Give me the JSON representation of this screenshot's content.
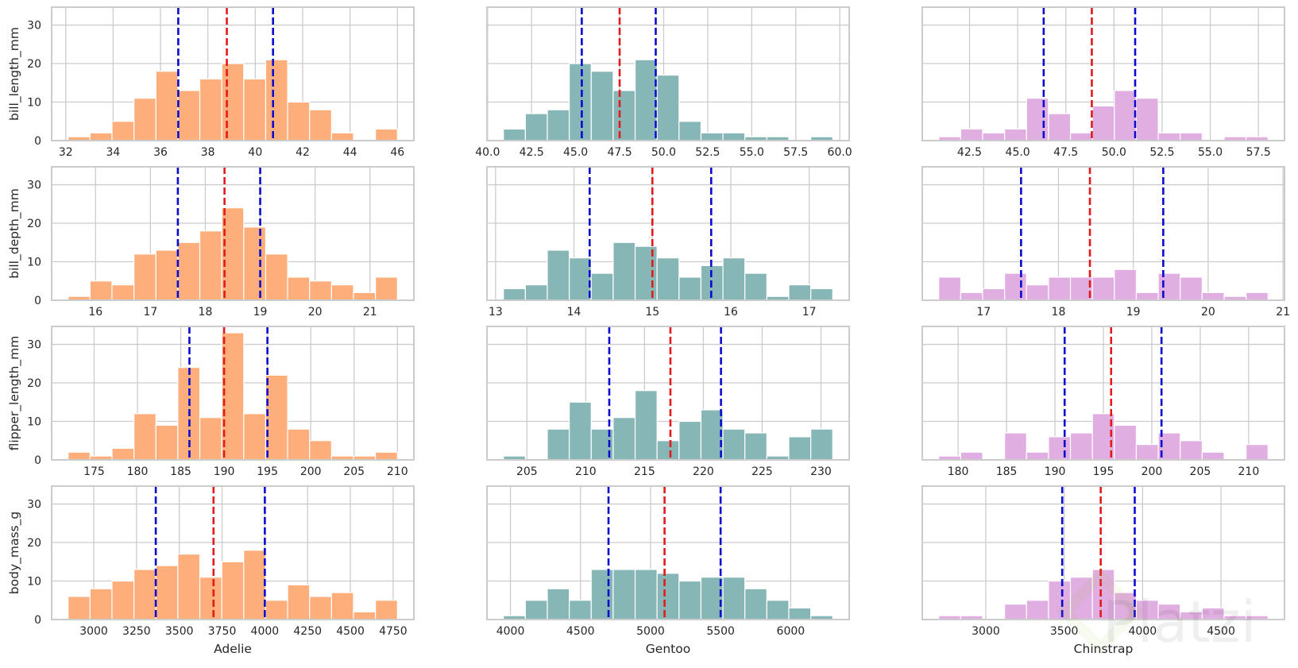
{
  "chart_data": {
    "type": "histogram-grid",
    "title": "",
    "species": [
      "Adelie",
      "Gentoo",
      "Chinstrap"
    ],
    "variables": [
      "bill_length_mm",
      "bill_depth_mm",
      "flipper_length_mm",
      "body_mass_g"
    ],
    "colors": {
      "Adelie": "#fdae7b",
      "Gentoo": "#87b6b7",
      "Chinstrap": "#e0aee0",
      "center_line": "#e3191c",
      "spread_lines": "#0b0bd0",
      "grid": "#cccccc",
      "spine": "#cccccc"
    },
    "ylim": [
      0,
      34.65
    ],
    "yticks": [
      0,
      10,
      20,
      30
    ],
    "grid": true,
    "legend": "none",
    "watermark": "Platzi",
    "panels": [
      {
        "row": 0,
        "col": 0,
        "species": "Adelie",
        "variable": "bill_length_mm",
        "bin_range": [
          32.1,
          46.0
        ],
        "counts": [
          1,
          2,
          5,
          11,
          18,
          13,
          16,
          20,
          16,
          21,
          10,
          8,
          2,
          0,
          3
        ],
        "xticks": [
          32,
          34,
          36,
          38,
          40,
          42,
          44,
          46
        ],
        "xtick_labels": [
          "32",
          "34",
          "36",
          "38",
          "40",
          "42",
          "44",
          "46"
        ],
        "center": 38.8,
        "lower": 36.75,
        "upper": 40.75
      },
      {
        "row": 0,
        "col": 1,
        "species": "Gentoo",
        "variable": "bill_length_mm",
        "bin_range": [
          40.9,
          59.6
        ],
        "counts": [
          3,
          7,
          8,
          20,
          18,
          13,
          21,
          17,
          5,
          2,
          2,
          1,
          1,
          0,
          1
        ],
        "xticks": [
          40,
          42.5,
          45,
          47.5,
          50,
          52.5,
          55,
          57.5,
          60
        ],
        "xtick_labels": [
          "40.0",
          "42.5",
          "45.0",
          "47.5",
          "50.0",
          "52.5",
          "55.0",
          "57.5",
          "60.0"
        ],
        "center": 47.5,
        "lower": 45.35,
        "upper": 49.55
      },
      {
        "row": 0,
        "col": 2,
        "species": "Chinstrap",
        "variable": "bill_length_mm",
        "bin_range": [
          40.9,
          58.0
        ],
        "counts": [
          1,
          3,
          2,
          3,
          11,
          7,
          2,
          9,
          13,
          11,
          2,
          2,
          0,
          1,
          1
        ],
        "xticks": [
          42.5,
          45,
          47.5,
          50,
          52.5,
          55,
          57.5
        ],
        "xtick_labels": [
          "42.5",
          "45.0",
          "47.5",
          "50.0",
          "52.5",
          "55.0",
          "57.5"
        ],
        "center": 48.85,
        "lower": 46.35,
        "upper": 51.1
      },
      {
        "row": 1,
        "col": 0,
        "species": "Adelie",
        "variable": "bill_depth_mm",
        "bin_range": [
          15.5,
          21.5
        ],
        "counts": [
          1,
          5,
          4,
          12,
          13,
          15,
          18,
          24,
          19,
          12,
          6,
          5,
          4,
          2,
          6
        ],
        "xticks": [
          16,
          17,
          18,
          19,
          20,
          21
        ],
        "xtick_labels": [
          "16",
          "17",
          "18",
          "19",
          "20",
          "21"
        ],
        "center": 18.35,
        "lower": 17.5,
        "upper": 19.0
      },
      {
        "row": 1,
        "col": 1,
        "species": "Gentoo",
        "variable": "bill_depth_mm",
        "bin_range": [
          13.1,
          17.3
        ],
        "counts": [
          3,
          4,
          13,
          11,
          7,
          15,
          14,
          11,
          6,
          9,
          11,
          7,
          1,
          4,
          3
        ],
        "xticks": [
          13,
          14,
          15,
          16,
          17
        ],
        "xtick_labels": [
          "13",
          "14",
          "15",
          "16",
          "17"
        ],
        "center": 15.0,
        "lower": 14.2,
        "upper": 15.75
      },
      {
        "row": 1,
        "col": 2,
        "species": "Chinstrap",
        "variable": "bill_depth_mm",
        "bin_range": [
          16.4,
          20.8
        ],
        "counts": [
          6,
          2,
          3,
          7,
          4,
          6,
          6,
          6,
          8,
          2,
          7,
          6,
          2,
          1,
          2
        ],
        "xticks": [
          17,
          18,
          19,
          20,
          21
        ],
        "xtick_labels": [
          "17",
          "18",
          "19",
          "20",
          "21"
        ],
        "center": 18.42,
        "lower": 17.5,
        "upper": 19.4
      },
      {
        "row": 2,
        "col": 0,
        "species": "Adelie",
        "variable": "flipper_length_mm",
        "bin_range": [
          172,
          210
        ],
        "counts": [
          2,
          1,
          3,
          12,
          9,
          24,
          11,
          33,
          12,
          22,
          8,
          5,
          1,
          1,
          2
        ],
        "xticks": [
          175,
          180,
          185,
          190,
          195,
          200,
          205,
          210
        ],
        "xtick_labels": [
          "175",
          "180",
          "185",
          "190",
          "195",
          "200",
          "205",
          "210"
        ],
        "center": 190,
        "lower": 186,
        "upper": 195
      },
      {
        "row": 2,
        "col": 1,
        "species": "Gentoo",
        "variable": "flipper_length_mm",
        "bin_range": [
          203,
          231
        ],
        "counts": [
          1,
          0,
          8,
          15,
          8,
          11,
          18,
          5,
          10,
          13,
          8,
          7,
          1,
          6,
          8
        ],
        "xticks": [
          205,
          210,
          215,
          220,
          225,
          230
        ],
        "xtick_labels": [
          "205",
          "210",
          "215",
          "220",
          "225",
          "230"
        ],
        "center": 217.2,
        "lower": 212,
        "upper": 221.5
      },
      {
        "row": 2,
        "col": 2,
        "species": "Chinstrap",
        "variable": "flipper_length_mm",
        "bin_range": [
          178,
          212
        ],
        "counts": [
          1,
          2,
          0,
          7,
          2,
          6,
          7,
          12,
          9,
          4,
          7,
          5,
          2,
          0,
          4
        ],
        "xticks": [
          180,
          185,
          190,
          195,
          200,
          205,
          210
        ],
        "xtick_labels": [
          "180",
          "185",
          "190",
          "195",
          "200",
          "205",
          "210"
        ],
        "center": 195.8,
        "lower": 191,
        "upper": 201
      },
      {
        "row": 3,
        "col": 0,
        "species": "Adelie",
        "variable": "body_mass_g",
        "bin_range": [
          2850,
          4775
        ],
        "counts": [
          6,
          8,
          10,
          13,
          14,
          17,
          11,
          15,
          18,
          5,
          9,
          6,
          7,
          2,
          5
        ],
        "xticks": [
          3000,
          3250,
          3500,
          3750,
          4000,
          4250,
          4500,
          4750
        ],
        "xtick_labels": [
          "3000",
          "3250",
          "3500",
          "3750",
          "4000",
          "4250",
          "4500",
          "4750"
        ],
        "center": 3700,
        "lower": 3362.5,
        "upper": 4000
      },
      {
        "row": 3,
        "col": 1,
        "species": "Gentoo",
        "variable": "body_mass_g",
        "bin_range": [
          3950,
          6300
        ],
        "counts": [
          1,
          5,
          8,
          5,
          13,
          13,
          13,
          12,
          10,
          11,
          11,
          8,
          5,
          3,
          1
        ],
        "xticks": [
          4000,
          4500,
          5000,
          5500,
          6000
        ],
        "xtick_labels": [
          "4000",
          "4500",
          "5000",
          "5500",
          "6000"
        ],
        "center": 5100,
        "lower": 4700,
        "upper": 5500
      },
      {
        "row": 3,
        "col": 2,
        "species": "Chinstrap",
        "variable": "body_mass_g",
        "bin_range": [
          2700,
          4800
        ],
        "counts": [
          1,
          1,
          0,
          4,
          5,
          10,
          11,
          13,
          7,
          5,
          4,
          2,
          3,
          1,
          1
        ],
        "xticks": [
          3000,
          3500,
          4000,
          4500
        ],
        "xtick_labels": [
          "3000",
          "3500",
          "4000",
          "4500"
        ],
        "center": 3733,
        "lower": 3487.5,
        "upper": 3950
      }
    ],
    "row_ylabels": [
      "bill_length_mm",
      "bill_depth_mm",
      "flipper_length_mm",
      "body_mass_g"
    ],
    "col_xlabels": [
      "Adelie",
      "Gentoo",
      "Chinstrap"
    ]
  }
}
